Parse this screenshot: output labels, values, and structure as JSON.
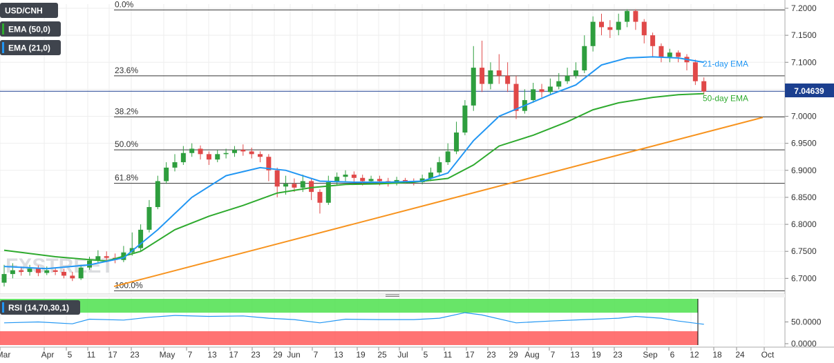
{
  "legend": {
    "symbol": "USD/CNH",
    "ema50": "EMA (50,0)",
    "ema21": "EMA (21,0)",
    "rsi": "RSI (14,70,30,1)"
  },
  "watermark": "FXSTREET",
  "price_label": "7.04639",
  "colors": {
    "up": "#2e9e3e",
    "down": "#e04848",
    "ema21": "#2196f3",
    "ema50": "#2eaa2e",
    "trendline": "#f7931e",
    "rsi_line": "#2196f3",
    "rsi_upper_band": "#4ee04e",
    "rsi_lower_band": "#ff5a5a",
    "fib": "#333333",
    "price_line": "#1b3f8f",
    "legend_bg": "#3f444d"
  },
  "chart_data": {
    "type": "candlestick",
    "title": "USD/CNH",
    "y_axis": {
      "min": 6.68,
      "max": 7.2,
      "ticks": [
        "7.2000",
        "7.1500",
        "7.1000",
        "7.0500",
        "7.0000",
        "6.9500",
        "6.9000",
        "6.8500",
        "6.8000",
        "6.7500",
        "6.7000"
      ]
    },
    "x_axis": {
      "ticks": [
        "Mar",
        "Apr",
        "5",
        "11",
        "17",
        "23",
        "May",
        "7",
        "13",
        "17",
        "23",
        "29",
        "Jun",
        "7",
        "13",
        "19",
        "25",
        "Jul",
        "5",
        "11",
        "17",
        "23",
        "29",
        "Aug",
        "7",
        "13",
        "19",
        "23",
        "Sep",
        "6",
        "12",
        "18",
        "24",
        "Oct"
      ]
    },
    "fibonacci": [
      {
        "label": "0.0%",
        "value": 7.197
      },
      {
        "label": "23.6%",
        "value": 7.075
      },
      {
        "label": "38.2%",
        "value": 6.999
      },
      {
        "label": "50.0%",
        "value": 6.938
      },
      {
        "label": "61.8%",
        "value": 6.876
      },
      {
        "label": "100.0%",
        "value": 6.677
      }
    ],
    "annotations": [
      {
        "text": "21-day EMA",
        "value": 7.097
      },
      {
        "text": "50-day EMA",
        "value": 7.033
      }
    ],
    "current_price": 7.04639,
    "trendline": {
      "from": [
        0,
        6.685
      ],
      "to": [
        47,
        6.998
      ]
    },
    "candles": [
      [
        6.692,
        6.708,
        6.725,
        6.685
      ],
      [
        6.708,
        6.715,
        6.728,
        6.7
      ],
      [
        6.715,
        6.712,
        6.722,
        6.705
      ],
      [
        6.712,
        6.718,
        6.725,
        6.705
      ],
      [
        6.718,
        6.71,
        6.724,
        6.704
      ],
      [
        6.71,
        6.715,
        6.722,
        6.706
      ],
      [
        6.715,
        6.712,
        6.72,
        6.706
      ],
      [
        6.712,
        6.705,
        6.718,
        6.7
      ],
      [
        6.705,
        6.7,
        6.712,
        6.695
      ],
      [
        6.7,
        6.72,
        6.725,
        6.697
      ],
      [
        6.72,
        6.733,
        6.74,
        6.716
      ],
      [
        6.733,
        6.741,
        6.752,
        6.728
      ],
      [
        6.741,
        6.738,
        6.75,
        6.73
      ],
      [
        6.738,
        6.734,
        6.746,
        6.728
      ],
      [
        6.734,
        6.748,
        6.76,
        6.73
      ],
      [
        6.748,
        6.756,
        6.785,
        6.742
      ],
      [
        6.756,
        6.79,
        6.8,
        6.75
      ],
      [
        6.79,
        6.832,
        6.845,
        6.785
      ],
      [
        6.832,
        6.88,
        6.89,
        6.828
      ],
      [
        6.88,
        6.905,
        6.915,
        6.875
      ],
      [
        6.905,
        6.915,
        6.93,
        6.898
      ],
      [
        6.915,
        6.932,
        6.945,
        6.91
      ],
      [
        6.932,
        6.94,
        6.95,
        6.925
      ],
      [
        6.94,
        6.93,
        6.946,
        6.92
      ],
      [
        6.93,
        6.92,
        6.935,
        6.91
      ],
      [
        6.92,
        6.93,
        6.938,
        6.915
      ],
      [
        6.93,
        6.932,
        6.94,
        6.922
      ],
      [
        6.932,
        6.938,
        6.945,
        6.925
      ],
      [
        6.938,
        6.935,
        6.948,
        6.927
      ],
      [
        6.935,
        6.93,
        6.942,
        6.922
      ],
      [
        6.93,
        6.925,
        6.935,
        6.915
      ],
      [
        6.925,
        6.9,
        6.93,
        6.88
      ],
      [
        6.9,
        6.87,
        6.905,
        6.85
      ],
      [
        6.87,
        6.875,
        6.89,
        6.855
      ],
      [
        6.875,
        6.868,
        6.885,
        6.86
      ],
      [
        6.868,
        6.88,
        6.892,
        6.86
      ],
      [
        6.88,
        6.86,
        6.885,
        6.845
      ],
      [
        6.86,
        6.84,
        6.865,
        6.82
      ],
      [
        6.84,
        6.878,
        6.89,
        6.836
      ],
      [
        6.878,
        6.888,
        6.896,
        6.872
      ],
      [
        6.888,
        6.892,
        6.9,
        6.88
      ],
      [
        6.892,
        6.886,
        6.898,
        6.878
      ],
      [
        6.886,
        6.88,
        6.892,
        6.872
      ],
      [
        6.88,
        6.884,
        6.89,
        6.874
      ],
      [
        6.884,
        6.88,
        6.89,
        6.872
      ],
      [
        6.88,
        6.878,
        6.886,
        6.87
      ],
      [
        6.878,
        6.882,
        6.888,
        6.872
      ],
      [
        6.882,
        6.88,
        6.886,
        6.875
      ],
      [
        6.88,
        6.878,
        6.885,
        6.872
      ],
      [
        6.878,
        6.885,
        6.892,
        6.874
      ],
      [
        6.885,
        6.896,
        6.905,
        6.88
      ],
      [
        6.896,
        6.915,
        6.925,
        6.89
      ],
      [
        6.915,
        6.935,
        6.95,
        6.91
      ],
      [
        6.935,
        6.97,
        6.99,
        6.93
      ],
      [
        6.97,
        7.02,
        7.03,
        6.965
      ],
      [
        7.02,
        7.09,
        7.13,
        7.01
      ],
      [
        7.09,
        7.06,
        7.14,
        7.045
      ],
      [
        7.06,
        7.085,
        7.1,
        7.05
      ],
      [
        7.085,
        7.075,
        7.115,
        7.06
      ],
      [
        7.075,
        7.06,
        7.1,
        7.045
      ],
      [
        7.06,
        7.01,
        7.075,
        6.995
      ],
      [
        7.01,
        7.03,
        7.05,
        7.005
      ],
      [
        7.03,
        7.05,
        7.062,
        7.025
      ],
      [
        7.05,
        7.045,
        7.06,
        7.035
      ],
      [
        7.045,
        7.055,
        7.07,
        7.04
      ],
      [
        7.055,
        7.065,
        7.08,
        7.05
      ],
      [
        7.065,
        7.075,
        7.09,
        7.06
      ],
      [
        7.075,
        7.085,
        7.1,
        7.07
      ],
      [
        7.085,
        7.13,
        7.15,
        7.08
      ],
      [
        7.13,
        7.175,
        7.185,
        7.12
      ],
      [
        7.175,
        7.165,
        7.19,
        7.15
      ],
      [
        7.165,
        7.16,
        7.178,
        7.145
      ],
      [
        7.16,
        7.175,
        7.19,
        7.15
      ],
      [
        7.175,
        7.195,
        7.198,
        7.165
      ],
      [
        7.195,
        7.175,
        7.198,
        7.16
      ],
      [
        7.175,
        7.15,
        7.18,
        7.135
      ],
      [
        7.15,
        7.13,
        7.155,
        7.11
      ],
      [
        7.13,
        7.11,
        7.135,
        7.1
      ],
      [
        7.11,
        7.118,
        7.125,
        7.1
      ],
      [
        7.118,
        7.11,
        7.122,
        7.1
      ],
      [
        7.11,
        7.1,
        7.115,
        7.085
      ],
      [
        7.1,
        7.065,
        7.105,
        7.058
      ],
      [
        7.065,
        7.046,
        7.072,
        7.04
      ]
    ],
    "ema21": [
      [
        0,
        6.722
      ],
      [
        5,
        6.718
      ],
      [
        10,
        6.725
      ],
      [
        14,
        6.738
      ],
      [
        18,
        6.79
      ],
      [
        22,
        6.85
      ],
      [
        26,
        6.89
      ],
      [
        30,
        6.905
      ],
      [
        33,
        6.9
      ],
      [
        37,
        6.88
      ],
      [
        41,
        6.878
      ],
      [
        45,
        6.878
      ],
      [
        49,
        6.88
      ],
      [
        52,
        6.895
      ],
      [
        55,
        6.955
      ],
      [
        58,
        7.0
      ],
      [
        61,
        7.02
      ],
      [
        64,
        7.04
      ],
      [
        67,
        7.058
      ],
      [
        70,
        7.095
      ],
      [
        73,
        7.108
      ],
      [
        76,
        7.11
      ],
      [
        79,
        7.108
      ],
      [
        82,
        7.1
      ]
    ],
    "ema50": [
      [
        0,
        6.752
      ],
      [
        6,
        6.74
      ],
      [
        12,
        6.732
      ],
      [
        16,
        6.75
      ],
      [
        20,
        6.79
      ],
      [
        24,
        6.815
      ],
      [
        28,
        6.835
      ],
      [
        32,
        6.858
      ],
      [
        36,
        6.868
      ],
      [
        40,
        6.874
      ],
      [
        44,
        6.875
      ],
      [
        48,
        6.878
      ],
      [
        52,
        6.885
      ],
      [
        55,
        6.91
      ],
      [
        58,
        6.945
      ],
      [
        62,
        6.965
      ],
      [
        66,
        6.99
      ],
      [
        69,
        7.012
      ],
      [
        72,
        7.025
      ],
      [
        76,
        7.035
      ],
      [
        79,
        7.04
      ],
      [
        82,
        7.042
      ]
    ],
    "rsi": {
      "min": 0,
      "max": 100,
      "upper": 70,
      "lower": 30,
      "ticks": [
        "50.0000",
        "0.0000"
      ],
      "values": [
        [
          0,
          48
        ],
        [
          4,
          50
        ],
        [
          8,
          46
        ],
        [
          10,
          56
        ],
        [
          14,
          54
        ],
        [
          17,
          60
        ],
        [
          20,
          64
        ],
        [
          24,
          62
        ],
        [
          28,
          63
        ],
        [
          31,
          58
        ],
        [
          34,
          55
        ],
        [
          37,
          48
        ],
        [
          40,
          56
        ],
        [
          44,
          55
        ],
        [
          48,
          55
        ],
        [
          51,
          58
        ],
        [
          54,
          70
        ],
        [
          56,
          65
        ],
        [
          60,
          48
        ],
        [
          64,
          52
        ],
        [
          68,
          55
        ],
        [
          72,
          58
        ],
        [
          74,
          62
        ],
        [
          77,
          58
        ],
        [
          79,
          52
        ],
        [
          82,
          45
        ]
      ]
    }
  }
}
